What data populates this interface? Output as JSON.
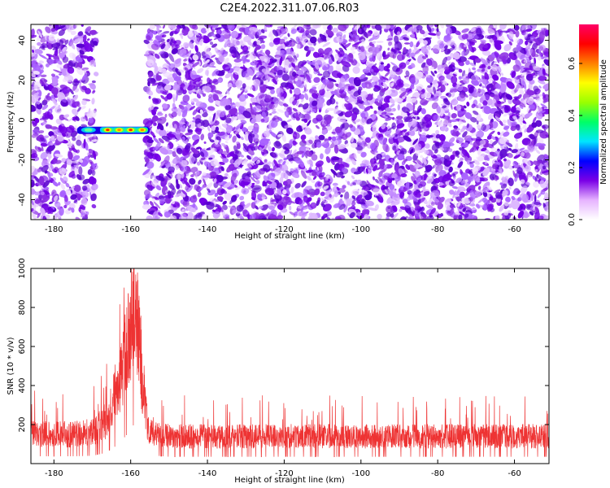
{
  "title": "C2E4.2022.311.07.06.R03",
  "chart_data": [
    {
      "type": "heatmap",
      "xlabel": "Height of straight line (km)",
      "ylabel": "Frequency (Hz)",
      "xlim": [
        -186,
        -51
      ],
      "ylim": [
        -50,
        48
      ],
      "xticks": [
        -180,
        -160,
        -140,
        -120,
        -100,
        -80,
        -60
      ],
      "yticks": [
        -40,
        -20,
        0,
        20,
        40
      ],
      "gap_x_range": [
        -169,
        -156
      ],
      "signal": {
        "x_range": [
          -174,
          -155
        ],
        "y": -5,
        "peak_x": [
          -166,
          -163,
          -160,
          -157
        ]
      },
      "colorbar": {
        "label": "Normalized spectral amplitude",
        "range": [
          0,
          0.75
        ],
        "ticks": [
          0.0,
          0.2,
          0.4,
          0.6
        ],
        "colors": [
          "#ffffff",
          "#e6b3ff",
          "#7a00e6",
          "#0000ff",
          "#00e6ff",
          "#00ff66",
          "#99ff00",
          "#ffff00",
          "#ff8000",
          "#ff0000",
          "#ff0066"
        ]
      }
    },
    {
      "type": "line",
      "xlabel": "Height of straight line (km)",
      "ylabel": "SNR (10 * v/v)",
      "xlim": [
        -186,
        -51
      ],
      "ylim": [
        0,
        1000
      ],
      "xticks": [
        -180,
        -160,
        -140,
        -120,
        -100,
        -80,
        -60
      ],
      "yticks": [
        200,
        400,
        600,
        800,
        1000
      ],
      "color": "#ee3333",
      "series": [
        {
          "x": [
            -186,
            -180,
            -175,
            -170,
            -167,
            -165,
            -163,
            -161,
            -160,
            -159,
            -158,
            -157,
            -156,
            -155,
            -150,
            -140,
            -120,
            -100,
            -80,
            -60,
            -51
          ],
          "values": [
            150,
            150,
            150,
            160,
            210,
            290,
            420,
            590,
            700,
            820,
            700,
            450,
            250,
            170,
            140,
            140,
            140,
            140,
            140,
            140,
            140
          ]
        }
      ]
    }
  ]
}
